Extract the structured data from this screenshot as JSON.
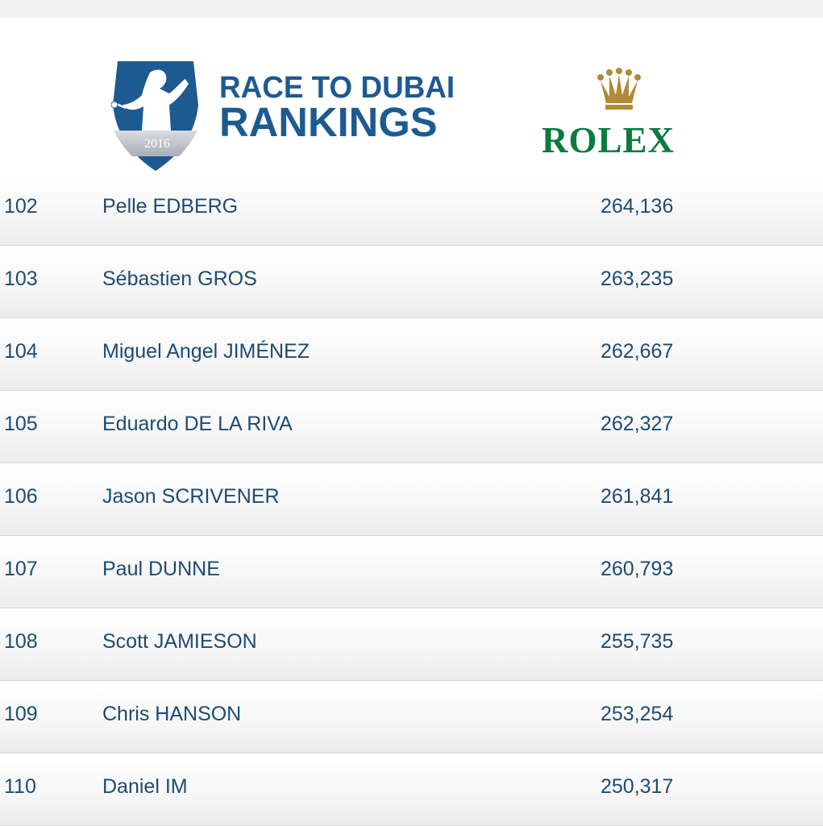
{
  "header": {
    "title_line1": "RACE TO DUBAI",
    "title_line2": "RANKINGS",
    "logo_year": "2016",
    "sponsor": "ROLEX",
    "brand_color": "#1e5a92",
    "sponsor_color": "#0b7a3f"
  },
  "rankings": [
    {
      "position": "102",
      "name": "Pelle EDBERG",
      "points": "264,136"
    },
    {
      "position": "103",
      "name": "Sébastien GROS",
      "points": "263,235"
    },
    {
      "position": "104",
      "name": "Miguel Angel JIMÉNEZ",
      "points": "262,667"
    },
    {
      "position": "105",
      "name": "Eduardo DE LA RIVA",
      "points": "262,327"
    },
    {
      "position": "106",
      "name": "Jason SCRIVENER",
      "points": "261,841"
    },
    {
      "position": "107",
      "name": "Paul DUNNE",
      "points": "260,793"
    },
    {
      "position": "108",
      "name": "Scott JAMIESON",
      "points": "255,735"
    },
    {
      "position": "109",
      "name": "Chris HANSON",
      "points": "253,254"
    },
    {
      "position": "110",
      "name": "Daniel IM",
      "points": "250,317"
    }
  ]
}
